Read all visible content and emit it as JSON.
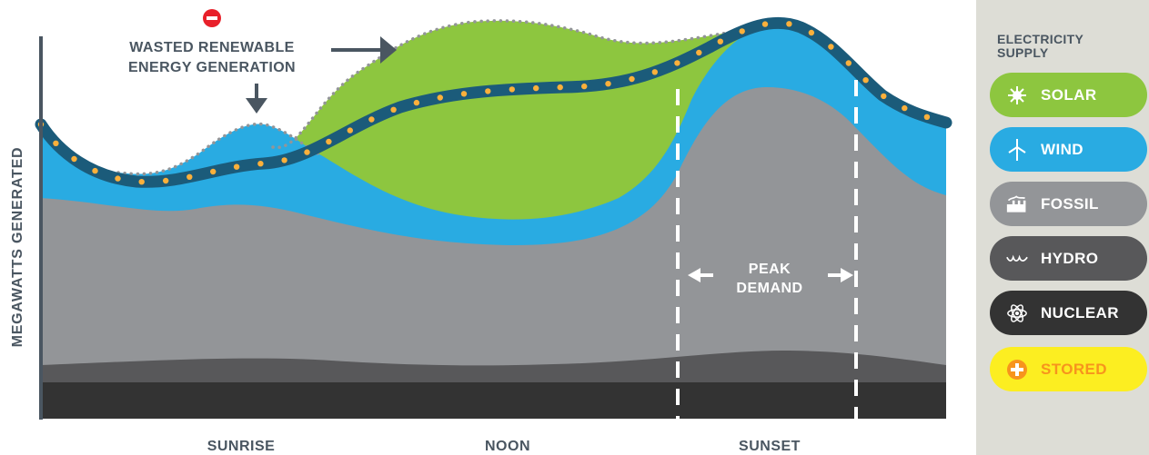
{
  "chart_data": {
    "type": "area",
    "ylabel": "MEGAWATTS GENERATED",
    "categories": [
      "SUNRISE",
      "NOON",
      "SUNSET"
    ],
    "annotations": {
      "wasted_line1": "WASTED RENEWABLE",
      "wasted_line2": "ENERGY GENERATION",
      "peak_line1": "PEAK",
      "peak_line2": "DEMAND"
    },
    "series": [
      {
        "name": "NUCLEAR",
        "color": "#333333"
      },
      {
        "name": "HYDRO",
        "color": "#58585a"
      },
      {
        "name": "FOSSIL",
        "color": "#939598"
      },
      {
        "name": "WIND",
        "color": "#29abe2"
      },
      {
        "name": "SOLAR",
        "color": "#8dc63f"
      },
      {
        "name": "STORED",
        "color": "#fcee21"
      }
    ]
  },
  "legend": {
    "title": "ELECTRICITY SUPPLY",
    "items": [
      {
        "label": "SOLAR",
        "icon": "sun-icon",
        "bg": "#8dc63f",
        "fg": "#ffffff"
      },
      {
        "label": "WIND",
        "icon": "wind-turbine-icon",
        "bg": "#29abe2",
        "fg": "#ffffff"
      },
      {
        "label": "FOSSIL",
        "icon": "factory-icon",
        "bg": "#939598",
        "fg": "#ffffff"
      },
      {
        "label": "HYDRO",
        "icon": "water-wave-icon",
        "bg": "#58585a",
        "fg": "#ffffff"
      },
      {
        "label": "NUCLEAR",
        "icon": "atom-icon",
        "bg": "#333333",
        "fg": "#ffffff"
      },
      {
        "label": "STORED",
        "icon": "plus-circle-icon",
        "bg": "#fcee21",
        "fg": "#f7941d"
      }
    ]
  }
}
